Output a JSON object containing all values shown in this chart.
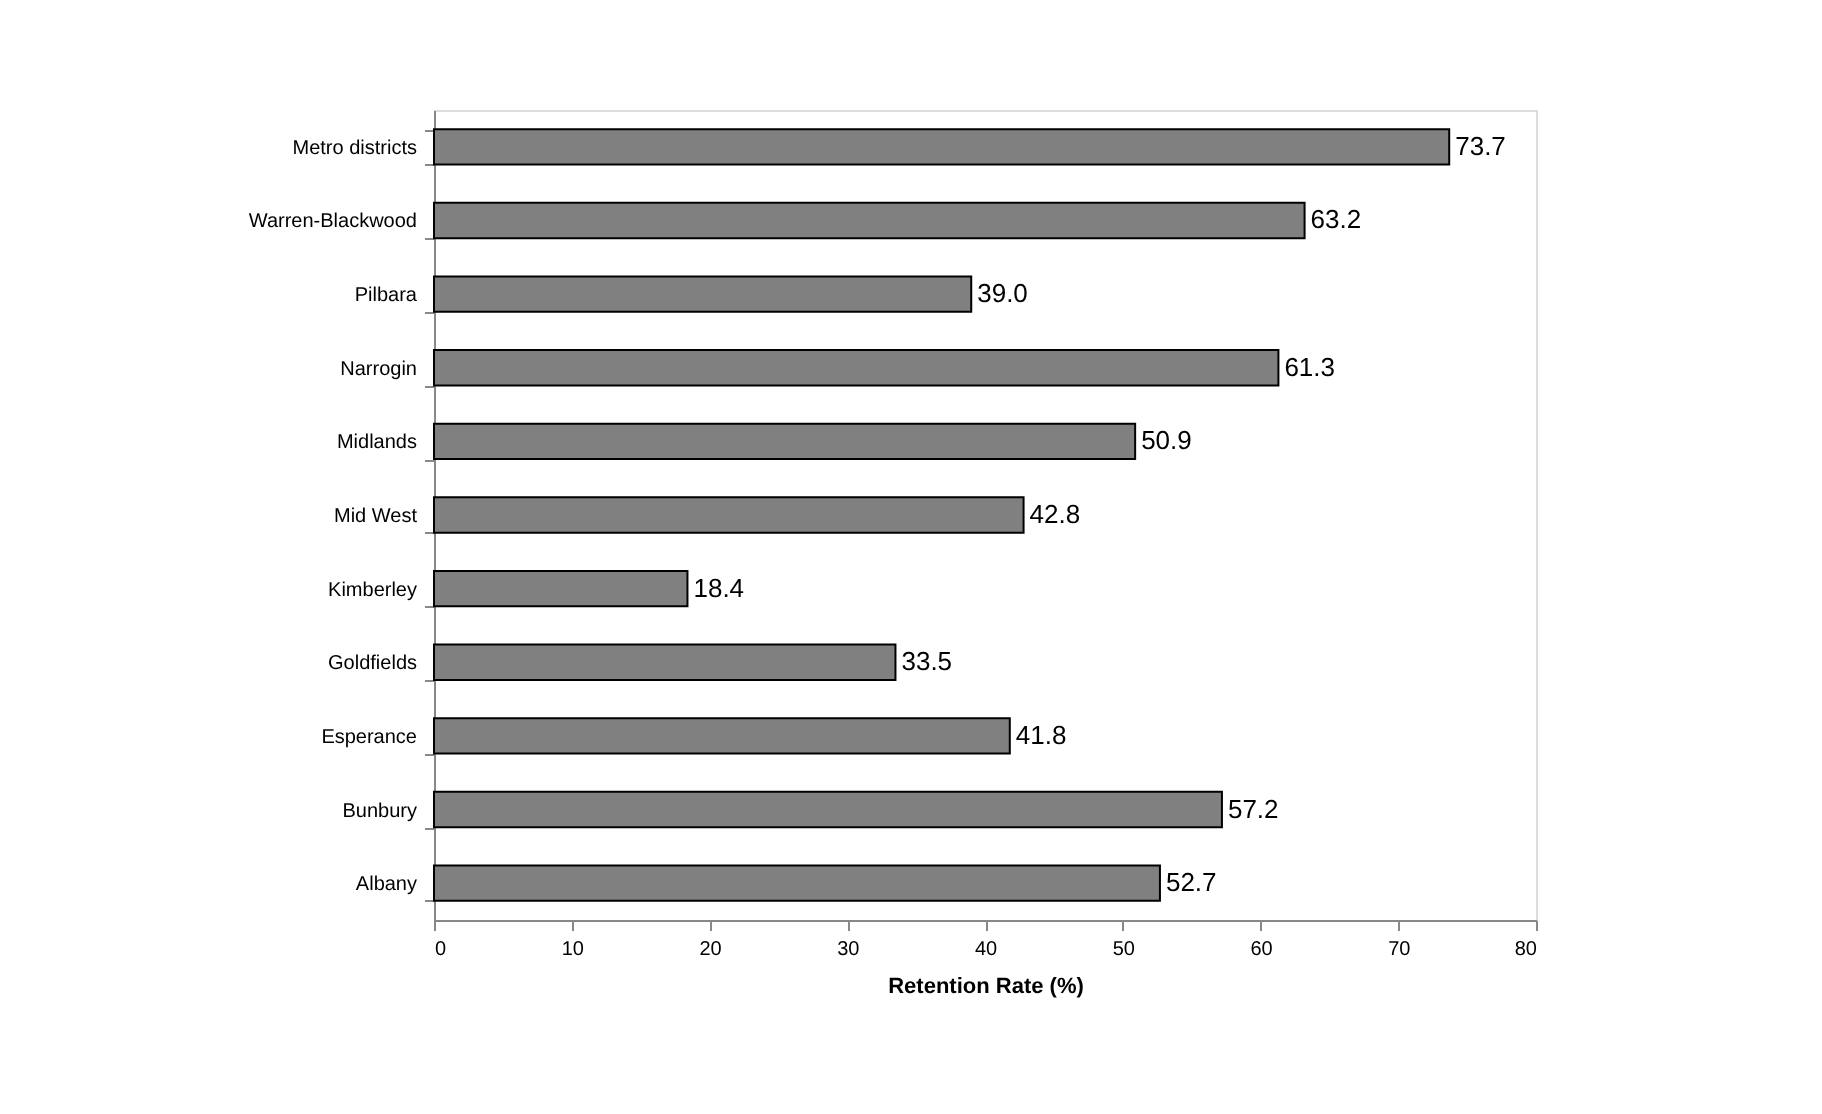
{
  "chart_data": {
    "type": "bar",
    "orientation": "horizontal",
    "xlabel": "Retention Rate (%)",
    "categories": [
      "Metro districts",
      "Warren-Blackwood",
      "Pilbara",
      "Narrogin",
      "Midlands",
      "Mid West",
      "Kimberley",
      "Goldfields",
      "Esperance",
      "Bunbury",
      "Albany"
    ],
    "values": [
      73.7,
      63.2,
      39.0,
      61.3,
      50.9,
      42.8,
      18.4,
      33.5,
      41.8,
      57.2,
      52.7
    ],
    "value_labels": [
      "73.7",
      "63.2",
      "39.0",
      "61.3",
      "50.9",
      "42.8",
      "18.4",
      "33.5",
      "41.8",
      "57.2",
      "52.7"
    ],
    "color": "#808080",
    "xlim": [
      0,
      80
    ],
    "xticks": [
      0,
      10,
      20,
      30,
      40,
      50,
      60,
      70,
      80
    ],
    "grid": false
  }
}
